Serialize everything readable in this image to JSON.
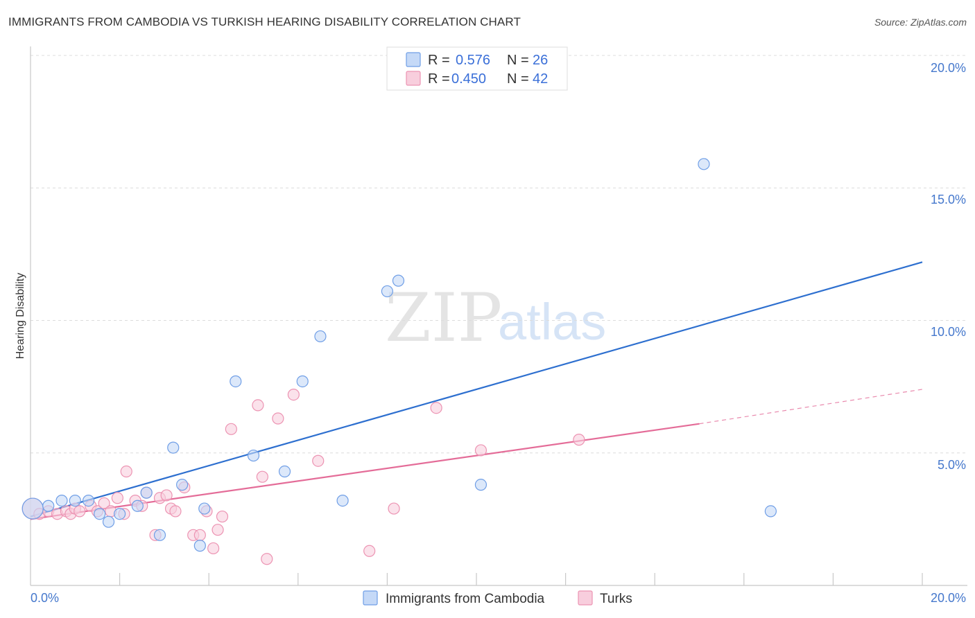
{
  "header": {
    "title": "IMMIGRANTS FROM CAMBODIA VS TURKISH HEARING DISABILITY CORRELATION CHART",
    "source": "Source: ZipAtlas.com"
  },
  "watermark": {
    "zip": "ZIP",
    "atlas": "atlas"
  },
  "colors": {
    "blue_fill": "#c5d9f7",
    "blue_stroke": "#6f9ee6",
    "blue_line": "#2d6fcf",
    "pink_fill": "#f8cedd",
    "pink_stroke": "#ec93b2",
    "pink_line": "#e46c98"
  },
  "stats_legend": {
    "r_label": "R =",
    "n_label": "N =",
    "cambodia": {
      "r": "0.576",
      "n": "26"
    },
    "turks": {
      "r": "0.450",
      "n": "42"
    }
  },
  "chart_data": {
    "type": "scatter",
    "title": "IMMIGRANTS FROM CAMBODIA VS TURKISH HEARING DISABILITY CORRELATION CHART",
    "xlabel": "",
    "ylabel": "Hearing Disability",
    "xlim": [
      0,
      20
    ],
    "ylim": [
      0,
      20
    ],
    "x_tick_labels": [
      "0.0%",
      "20.0%"
    ],
    "y_ticks": [
      5,
      10,
      15,
      20
    ],
    "y_tick_labels": [
      "5.0%",
      "10.0%",
      "15.0%",
      "20.0%"
    ],
    "grid": true,
    "legend_position": "bottom",
    "series": [
      {
        "name": "Immigrants from Cambodia",
        "color": "#6f9ee6",
        "points": [
          [
            0.05,
            2.9
          ],
          [
            0.4,
            3.0
          ],
          [
            0.7,
            3.2
          ],
          [
            1.0,
            3.2
          ],
          [
            1.3,
            3.2
          ],
          [
            1.55,
            2.7
          ],
          [
            1.75,
            2.4
          ],
          [
            2.0,
            2.7
          ],
          [
            2.4,
            3.0
          ],
          [
            2.6,
            3.5
          ],
          [
            2.9,
            1.9
          ],
          [
            3.2,
            5.2
          ],
          [
            3.4,
            3.8
          ],
          [
            3.8,
            1.5
          ],
          [
            3.9,
            2.9
          ],
          [
            4.6,
            7.7
          ],
          [
            5.0,
            4.9
          ],
          [
            5.7,
            4.3
          ],
          [
            6.1,
            7.7
          ],
          [
            6.5,
            9.4
          ],
          [
            7.0,
            3.2
          ],
          [
            8.0,
            11.1
          ],
          [
            8.25,
            11.5
          ],
          [
            10.1,
            3.8
          ],
          [
            15.1,
            15.9
          ],
          [
            16.6,
            2.8
          ]
        ],
        "trendline": {
          "x": [
            0,
            20
          ],
          "y": [
            2.6,
            12.2
          ]
        }
      },
      {
        "name": "Turks",
        "color": "#ec93b2",
        "points": [
          [
            0.05,
            2.9
          ],
          [
            0.2,
            2.7
          ],
          [
            0.4,
            2.8
          ],
          [
            0.6,
            2.7
          ],
          [
            0.8,
            2.8
          ],
          [
            0.9,
            2.7
          ],
          [
            1.0,
            2.9
          ],
          [
            1.1,
            2.8
          ],
          [
            1.35,
            3.0
          ],
          [
            1.5,
            2.8
          ],
          [
            1.65,
            3.1
          ],
          [
            1.8,
            2.8
          ],
          [
            1.95,
            3.3
          ],
          [
            2.1,
            2.7
          ],
          [
            2.15,
            4.3
          ],
          [
            2.35,
            3.2
          ],
          [
            2.5,
            3.0
          ],
          [
            2.6,
            3.5
          ],
          [
            2.8,
            1.9
          ],
          [
            2.9,
            3.3
          ],
          [
            3.05,
            3.4
          ],
          [
            3.15,
            2.9
          ],
          [
            3.25,
            2.8
          ],
          [
            3.45,
            3.7
          ],
          [
            3.65,
            1.9
          ],
          [
            3.8,
            1.9
          ],
          [
            3.95,
            2.8
          ],
          [
            4.1,
            1.4
          ],
          [
            4.2,
            2.1
          ],
          [
            4.3,
            2.6
          ],
          [
            4.5,
            5.9
          ],
          [
            5.1,
            6.8
          ],
          [
            5.2,
            4.1
          ],
          [
            5.3,
            1.0
          ],
          [
            5.55,
            6.3
          ],
          [
            5.9,
            7.2
          ],
          [
            6.45,
            4.7
          ],
          [
            7.6,
            1.3
          ],
          [
            8.15,
            2.9
          ],
          [
            9.1,
            6.7
          ],
          [
            10.1,
            5.1
          ],
          [
            12.3,
            5.5
          ]
        ],
        "trendline": {
          "x": [
            0,
            15
          ],
          "y": [
            2.5,
            6.1
          ]
        },
        "trendline_dashed_extension": {
          "x": [
            15,
            20
          ],
          "y": [
            6.1,
            7.4
          ]
        }
      }
    ]
  }
}
